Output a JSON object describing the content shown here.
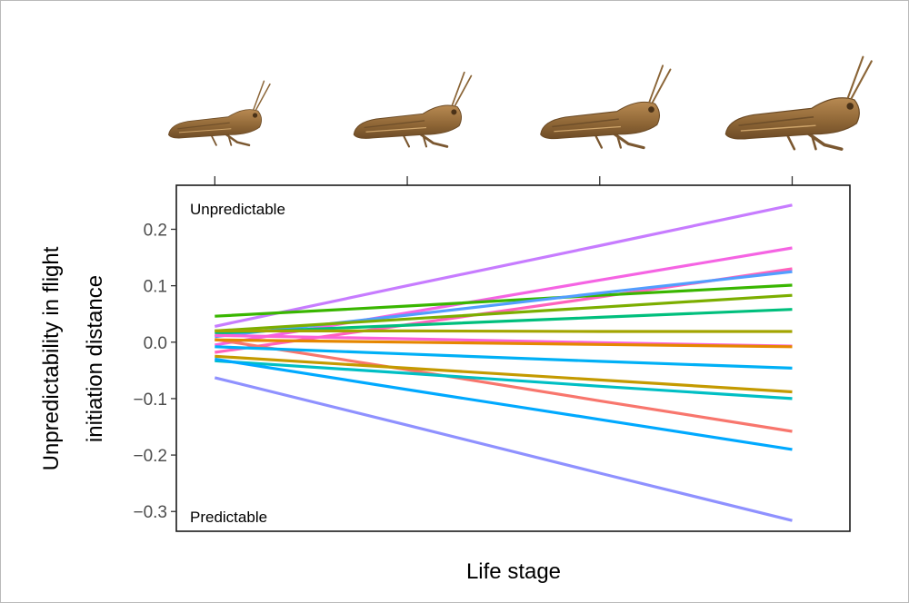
{
  "chart_data": {
    "type": "line",
    "xlabel": "Life stage",
    "ylabel": [
      "Unpredictability in flight",
      "initiation distance"
    ],
    "x": [
      1,
      2,
      3,
      4
    ],
    "xlim": [
      0.8,
      4.3
    ],
    "ylim": [
      -0.335,
      0.278
    ],
    "yticks": [
      0.2,
      0.1,
      0.0,
      -0.1,
      -0.2,
      -0.3
    ],
    "yticklabels": [
      "0.2",
      "0.1",
      "0.0",
      "−0.1",
      "−0.2",
      "−0.3"
    ],
    "grid": false,
    "legend": "none",
    "annotations": {
      "top": "Unpredictable",
      "bottom": "Predictable"
    },
    "series": [
      {
        "color": "#c77cff",
        "values": [
          0.028,
          0.1,
          0.171,
          0.243
        ]
      },
      {
        "color": "#f564e3",
        "values": [
          -0.005,
          0.052,
          0.11,
          0.167
        ]
      },
      {
        "color": "#ff62bc",
        "values": [
          -0.018,
          0.031,
          0.08,
          0.13
        ]
      },
      {
        "color": "#39b600",
        "values": [
          0.046,
          0.064,
          0.083,
          0.101
        ]
      },
      {
        "color": "#529efe",
        "values": [
          0.01,
          0.048,
          0.087,
          0.125
        ]
      },
      {
        "color": "#7cae00",
        "values": [
          0.02,
          0.041,
          0.062,
          0.083
        ]
      },
      {
        "color": "#00bf7d",
        "values": [
          0.016,
          0.03,
          0.044,
          0.058
        ]
      },
      {
        "color": "#a3a500",
        "values": [
          0.02,
          0.02,
          0.019,
          0.019
        ]
      },
      {
        "color": "#fb61d7",
        "values": [
          0.012,
          0.006,
          -0.001,
          -0.007
        ]
      },
      {
        "color": "#f8766d",
        "values": [
          0.005,
          -0.049,
          -0.104,
          -0.158
        ]
      },
      {
        "color": "#e58700",
        "values": [
          0.004,
          0.0,
          -0.004,
          -0.008
        ]
      },
      {
        "color": "#00b0f6",
        "values": [
          -0.008,
          -0.021,
          -0.034,
          -0.046
        ]
      },
      {
        "color": "#c49a00",
        "values": [
          -0.025,
          -0.046,
          -0.067,
          -0.088
        ]
      },
      {
        "color": "#00bfc4",
        "values": [
          -0.033,
          -0.055,
          -0.078,
          -0.1
        ]
      },
      {
        "color": "#00a9ff",
        "values": [
          -0.03,
          -0.084,
          -0.137,
          -0.19
        ]
      },
      {
        "color": "#8f91ff",
        "values": [
          -0.063,
          -0.147,
          -0.232,
          -0.316
        ]
      }
    ],
    "illustrations": [
      "grasshopper-stage-1",
      "grasshopper-stage-2",
      "grasshopper-stage-3",
      "grasshopper-stage-4"
    ]
  }
}
